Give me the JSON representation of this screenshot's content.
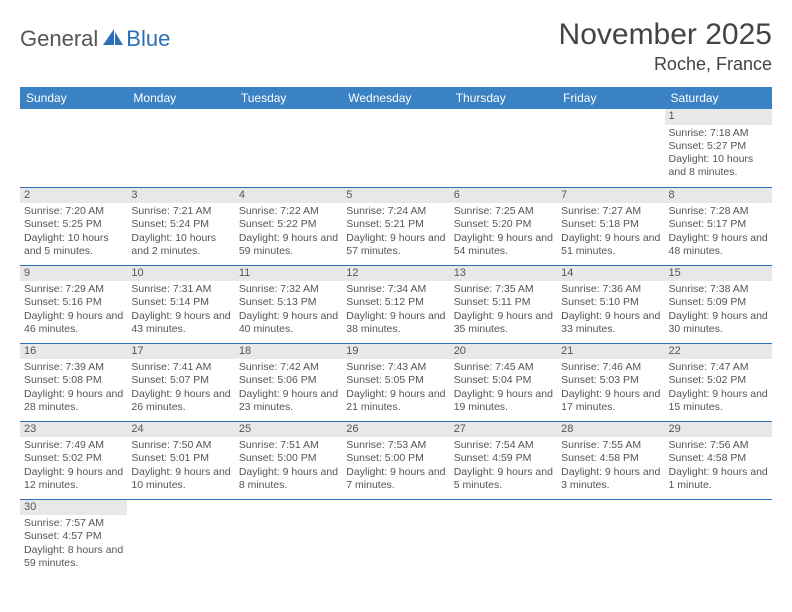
{
  "logo": {
    "part1": "General",
    "part2": "Blue"
  },
  "title": "November 2025",
  "location": "Roche, France",
  "colors": {
    "header_bg": "#3b82c4",
    "header_text": "#ffffff",
    "line": "#2b6fb5",
    "daynum_bg": "#e8e8e8",
    "text": "#555555"
  },
  "day_headers": [
    "Sunday",
    "Monday",
    "Tuesday",
    "Wednesday",
    "Thursday",
    "Friday",
    "Saturday"
  ],
  "weeks": [
    [
      null,
      null,
      null,
      null,
      null,
      null,
      {
        "n": "1",
        "sr": "Sunrise: 7:18 AM",
        "ss": "Sunset: 5:27 PM",
        "dl": "Daylight: 10 hours and 8 minutes."
      }
    ],
    [
      {
        "n": "2",
        "sr": "Sunrise: 7:20 AM",
        "ss": "Sunset: 5:25 PM",
        "dl": "Daylight: 10 hours and 5 minutes."
      },
      {
        "n": "3",
        "sr": "Sunrise: 7:21 AM",
        "ss": "Sunset: 5:24 PM",
        "dl": "Daylight: 10 hours and 2 minutes."
      },
      {
        "n": "4",
        "sr": "Sunrise: 7:22 AM",
        "ss": "Sunset: 5:22 PM",
        "dl": "Daylight: 9 hours and 59 minutes."
      },
      {
        "n": "5",
        "sr": "Sunrise: 7:24 AM",
        "ss": "Sunset: 5:21 PM",
        "dl": "Daylight: 9 hours and 57 minutes."
      },
      {
        "n": "6",
        "sr": "Sunrise: 7:25 AM",
        "ss": "Sunset: 5:20 PM",
        "dl": "Daylight: 9 hours and 54 minutes."
      },
      {
        "n": "7",
        "sr": "Sunrise: 7:27 AM",
        "ss": "Sunset: 5:18 PM",
        "dl": "Daylight: 9 hours and 51 minutes."
      },
      {
        "n": "8",
        "sr": "Sunrise: 7:28 AM",
        "ss": "Sunset: 5:17 PM",
        "dl": "Daylight: 9 hours and 48 minutes."
      }
    ],
    [
      {
        "n": "9",
        "sr": "Sunrise: 7:29 AM",
        "ss": "Sunset: 5:16 PM",
        "dl": "Daylight: 9 hours and 46 minutes."
      },
      {
        "n": "10",
        "sr": "Sunrise: 7:31 AM",
        "ss": "Sunset: 5:14 PM",
        "dl": "Daylight: 9 hours and 43 minutes."
      },
      {
        "n": "11",
        "sr": "Sunrise: 7:32 AM",
        "ss": "Sunset: 5:13 PM",
        "dl": "Daylight: 9 hours and 40 minutes."
      },
      {
        "n": "12",
        "sr": "Sunrise: 7:34 AM",
        "ss": "Sunset: 5:12 PM",
        "dl": "Daylight: 9 hours and 38 minutes."
      },
      {
        "n": "13",
        "sr": "Sunrise: 7:35 AM",
        "ss": "Sunset: 5:11 PM",
        "dl": "Daylight: 9 hours and 35 minutes."
      },
      {
        "n": "14",
        "sr": "Sunrise: 7:36 AM",
        "ss": "Sunset: 5:10 PM",
        "dl": "Daylight: 9 hours and 33 minutes."
      },
      {
        "n": "15",
        "sr": "Sunrise: 7:38 AM",
        "ss": "Sunset: 5:09 PM",
        "dl": "Daylight: 9 hours and 30 minutes."
      }
    ],
    [
      {
        "n": "16",
        "sr": "Sunrise: 7:39 AM",
        "ss": "Sunset: 5:08 PM",
        "dl": "Daylight: 9 hours and 28 minutes."
      },
      {
        "n": "17",
        "sr": "Sunrise: 7:41 AM",
        "ss": "Sunset: 5:07 PM",
        "dl": "Daylight: 9 hours and 26 minutes."
      },
      {
        "n": "18",
        "sr": "Sunrise: 7:42 AM",
        "ss": "Sunset: 5:06 PM",
        "dl": "Daylight: 9 hours and 23 minutes."
      },
      {
        "n": "19",
        "sr": "Sunrise: 7:43 AM",
        "ss": "Sunset: 5:05 PM",
        "dl": "Daylight: 9 hours and 21 minutes."
      },
      {
        "n": "20",
        "sr": "Sunrise: 7:45 AM",
        "ss": "Sunset: 5:04 PM",
        "dl": "Daylight: 9 hours and 19 minutes."
      },
      {
        "n": "21",
        "sr": "Sunrise: 7:46 AM",
        "ss": "Sunset: 5:03 PM",
        "dl": "Daylight: 9 hours and 17 minutes."
      },
      {
        "n": "22",
        "sr": "Sunrise: 7:47 AM",
        "ss": "Sunset: 5:02 PM",
        "dl": "Daylight: 9 hours and 15 minutes."
      }
    ],
    [
      {
        "n": "23",
        "sr": "Sunrise: 7:49 AM",
        "ss": "Sunset: 5:02 PM",
        "dl": "Daylight: 9 hours and 12 minutes."
      },
      {
        "n": "24",
        "sr": "Sunrise: 7:50 AM",
        "ss": "Sunset: 5:01 PM",
        "dl": "Daylight: 9 hours and 10 minutes."
      },
      {
        "n": "25",
        "sr": "Sunrise: 7:51 AM",
        "ss": "Sunset: 5:00 PM",
        "dl": "Daylight: 9 hours and 8 minutes."
      },
      {
        "n": "26",
        "sr": "Sunrise: 7:53 AM",
        "ss": "Sunset: 5:00 PM",
        "dl": "Daylight: 9 hours and 7 minutes."
      },
      {
        "n": "27",
        "sr": "Sunrise: 7:54 AM",
        "ss": "Sunset: 4:59 PM",
        "dl": "Daylight: 9 hours and 5 minutes."
      },
      {
        "n": "28",
        "sr": "Sunrise: 7:55 AM",
        "ss": "Sunset: 4:58 PM",
        "dl": "Daylight: 9 hours and 3 minutes."
      },
      {
        "n": "29",
        "sr": "Sunrise: 7:56 AM",
        "ss": "Sunset: 4:58 PM",
        "dl": "Daylight: 9 hours and 1 minute."
      }
    ],
    [
      {
        "n": "30",
        "sr": "Sunrise: 7:57 AM",
        "ss": "Sunset: 4:57 PM",
        "dl": "Daylight: 8 hours and 59 minutes."
      },
      null,
      null,
      null,
      null,
      null,
      null
    ]
  ]
}
